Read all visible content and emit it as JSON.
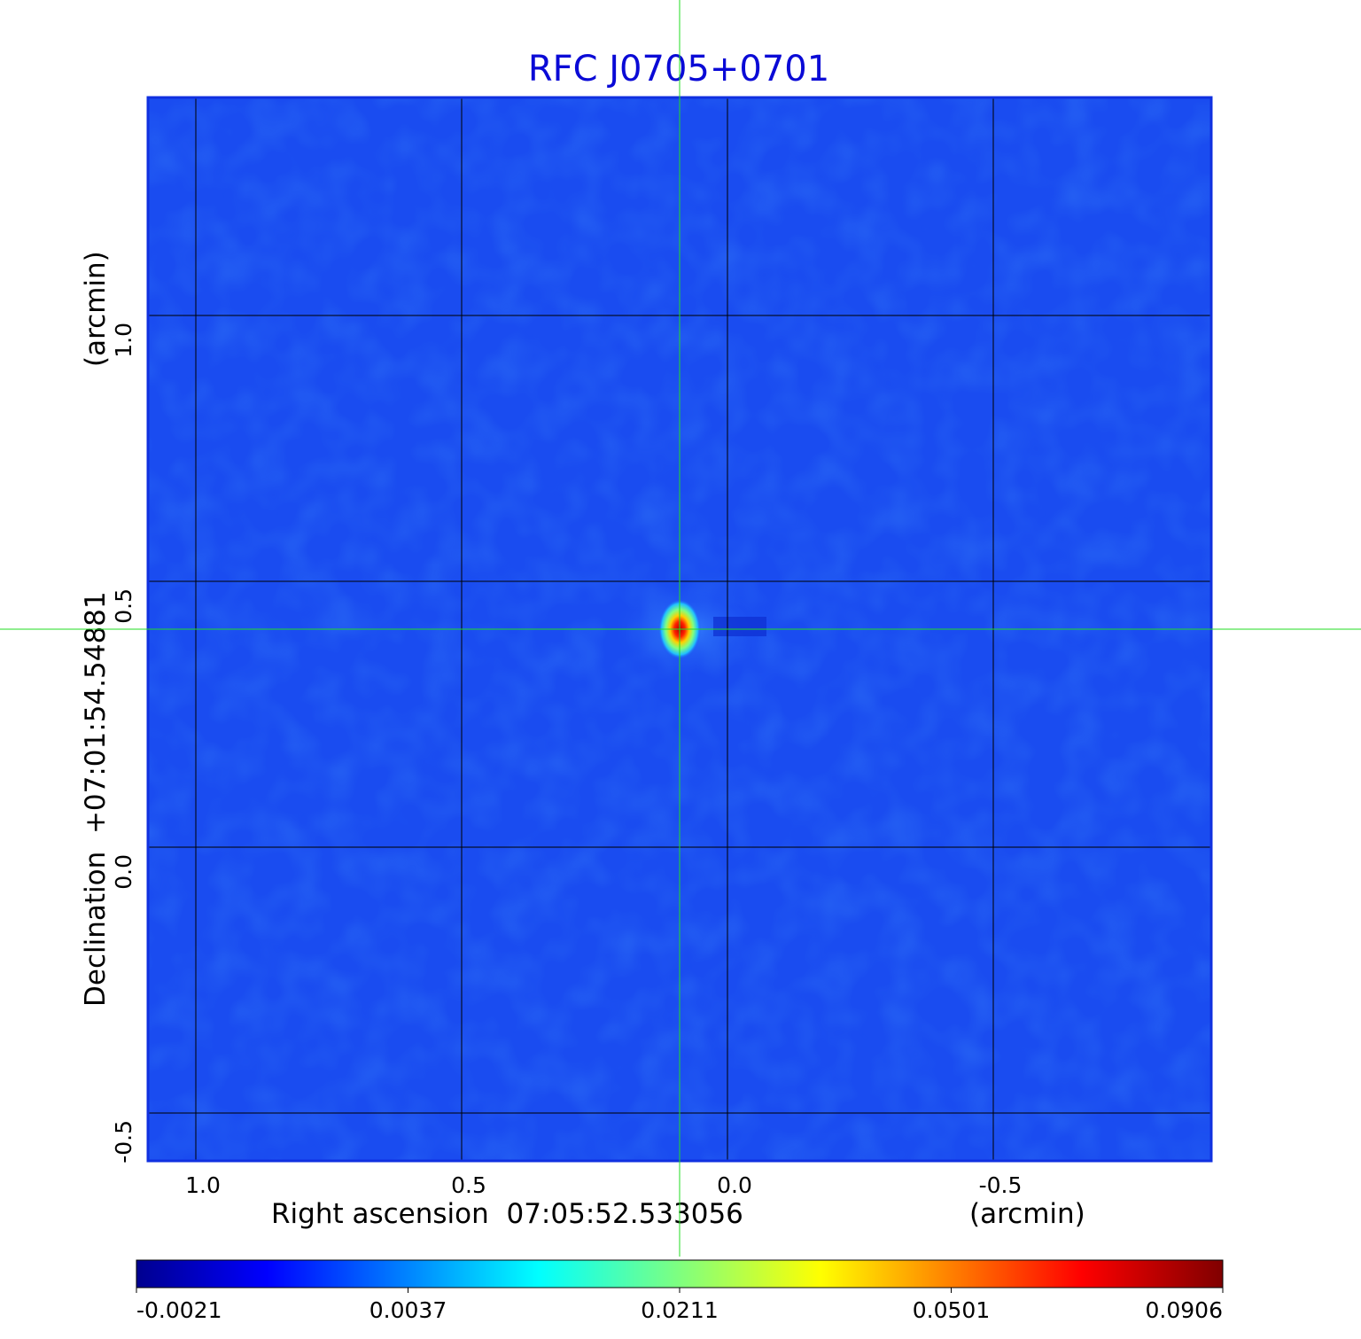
{
  "chart_data": {
    "type": "heatmap",
    "title": "RFC J0705+0701",
    "title_color": "#0a0ad6",
    "xlabel": "Right ascension  07:05:52.533056",
    "xunit": "(arcmin)",
    "ylabel": "Declination  +07:01:54.54881",
    "yunit": "(arcmin)",
    "xlim": [
      1.09,
      -0.91
    ],
    "ylim": [
      -0.59,
      1.41
    ],
    "x_ticks": [
      1.0,
      0.5,
      0.0,
      -0.5
    ],
    "x_tick_labels": [
      "1.0",
      "0.5",
      "0.0",
      "-0.5"
    ],
    "y_ticks": [
      1.0,
      0.5,
      0.0,
      -0.5
    ],
    "y_tick_labels": [
      "1.0",
      "0.5",
      "0.0",
      "-0.5"
    ],
    "grid": true,
    "crosshair": {
      "x": 0.09,
      "y": 0.41,
      "color": "#22dd22"
    },
    "source": {
      "x": 0.09,
      "y": 0.41,
      "peak": 0.0906
    },
    "colorbar": {
      "colormap": "jet",
      "orientation": "horizontal",
      "tick_labels": [
        "-0.0021",
        "0.0037",
        "0.0211",
        "0.0501",
        "0.0906"
      ]
    },
    "colors": {
      "background": "#1a4cf0",
      "frame": "#1030e0",
      "grid": "#000000"
    }
  }
}
